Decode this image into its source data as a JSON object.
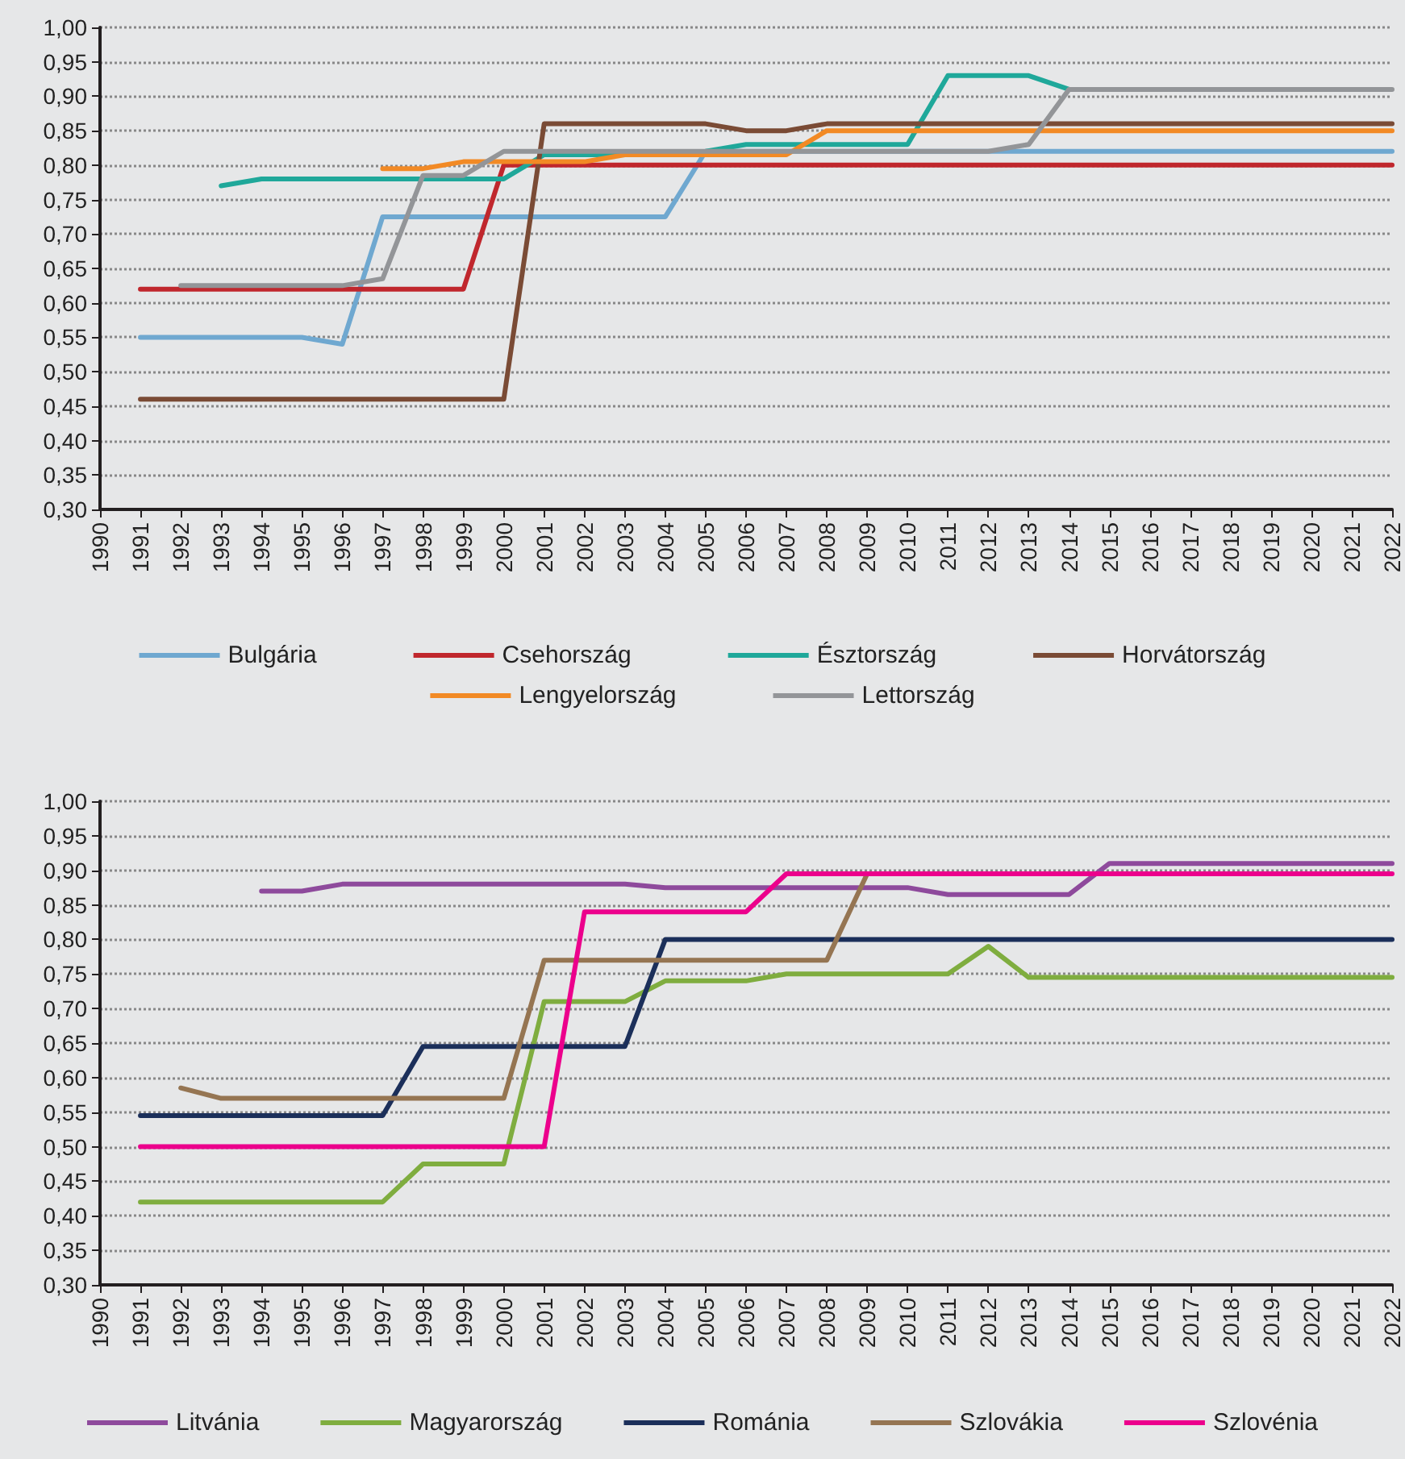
{
  "chart_data": [
    {
      "type": "line",
      "categories": [
        "1990",
        "1991",
        "1992",
        "1993",
        "1994",
        "1995",
        "1996",
        "1997",
        "1998",
        "1999",
        "2000",
        "2001",
        "2002",
        "2003",
        "2004",
        "2005",
        "2006",
        "2007",
        "2008",
        "2009",
        "2010",
        "2011",
        "2012",
        "2013",
        "2014",
        "2015",
        "2016",
        "2017",
        "2018",
        "2019",
        "2020",
        "2021",
        "2022"
      ],
      "series": [
        {
          "name": "Bulgária",
          "color": "#6fa8d0",
          "values": [
            null,
            0.55,
            0.55,
            0.55,
            0.55,
            0.55,
            0.54,
            0.725,
            0.725,
            0.725,
            0.725,
            0.725,
            0.725,
            0.725,
            0.725,
            0.82,
            0.82,
            0.82,
            0.82,
            0.82,
            0.82,
            0.82,
            0.82,
            0.82,
            0.82,
            0.82,
            0.82,
            0.82,
            0.82,
            0.82,
            0.82,
            0.82,
            0.82
          ]
        },
        {
          "name": "Csehország",
          "color": "#c0272d",
          "values": [
            null,
            0.62,
            0.62,
            0.62,
            0.62,
            0.62,
            0.62,
            0.62,
            0.62,
            0.62,
            0.8,
            0.8,
            0.8,
            0.8,
            0.8,
            0.8,
            0.8,
            0.8,
            0.8,
            0.8,
            0.8,
            0.8,
            0.8,
            0.8,
            0.8,
            0.8,
            0.8,
            0.8,
            0.8,
            0.8,
            0.8,
            0.8,
            0.8
          ]
        },
        {
          "name": "Észtország",
          "color": "#1fa89a",
          "values": [
            null,
            null,
            null,
            0.77,
            0.78,
            0.78,
            0.78,
            0.78,
            0.78,
            0.78,
            0.78,
            0.815,
            0.815,
            0.815,
            0.815,
            0.82,
            0.83,
            0.83,
            0.83,
            0.83,
            0.83,
            0.93,
            0.93,
            0.93,
            0.91,
            null,
            null,
            null,
            null,
            null,
            null,
            null,
            null
          ]
        },
        {
          "name": "Horvátország",
          "color": "#7a4b35",
          "values": [
            null,
            0.46,
            0.46,
            0.46,
            0.46,
            0.46,
            0.46,
            0.46,
            0.46,
            0.46,
            0.46,
            0.86,
            0.86,
            0.86,
            0.86,
            0.86,
            0.85,
            0.85,
            0.86,
            0.86,
            0.86,
            0.86,
            0.86,
            0.86,
            0.86,
            0.86,
            0.86,
            0.86,
            0.86,
            0.86,
            0.86,
            0.86,
            0.86
          ]
        },
        {
          "name": "Lengyelország",
          "color": "#f28a25",
          "values": [
            null,
            null,
            null,
            null,
            null,
            null,
            null,
            0.795,
            0.795,
            0.805,
            0.805,
            0.805,
            0.805,
            0.815,
            0.815,
            0.815,
            0.815,
            0.815,
            0.85,
            0.85,
            0.85,
            0.85,
            0.85,
            0.85,
            0.85,
            0.85,
            0.85,
            0.85,
            0.85,
            0.85,
            0.85,
            0.85,
            0.85
          ]
        },
        {
          "name": "Lettország",
          "color": "#939598",
          "values": [
            null,
            null,
            0.625,
            0.625,
            0.625,
            0.625,
            0.625,
            0.635,
            0.785,
            0.785,
            0.82,
            0.82,
            0.82,
            0.82,
            0.82,
            0.82,
            0.82,
            0.82,
            0.82,
            0.82,
            0.82,
            0.82,
            0.82,
            0.83,
            0.91,
            0.91,
            0.91,
            0.91,
            0.91,
            0.91,
            0.91,
            0.91,
            0.91
          ]
        }
      ],
      "ylim": [
        0.3,
        1
      ],
      "yticks": [
        {
          "value": 0.3,
          "label": "0,30"
        },
        {
          "value": 0.35,
          "label": "0,35"
        },
        {
          "value": 0.4,
          "label": "0,40"
        },
        {
          "value": 0.45,
          "label": "0,45"
        },
        {
          "value": 0.5,
          "label": "0,50"
        },
        {
          "value": 0.55,
          "label": "0,55"
        },
        {
          "value": 0.6,
          "label": "0,60"
        },
        {
          "value": 0.65,
          "label": "0,65"
        },
        {
          "value": 0.7,
          "label": "0,70"
        },
        {
          "value": 0.75,
          "label": "0,75"
        },
        {
          "value": 0.8,
          "label": "0,80"
        },
        {
          "value": 0.85,
          "label": "0,85"
        },
        {
          "value": 0.9,
          "label": "0,90"
        },
        {
          "value": 0.95,
          "label": "0,95"
        },
        {
          "value": 1,
          "label": "1,00"
        }
      ],
      "grid": "y",
      "legend": "bottom",
      "marker": "none",
      "line_style": "solid"
    },
    {
      "type": "line",
      "categories": [
        "1990",
        "1991",
        "1992",
        "1993",
        "1994",
        "1995",
        "1996",
        "1997",
        "1998",
        "1999",
        "2000",
        "2001",
        "2002",
        "2003",
        "2004",
        "2005",
        "2006",
        "2007",
        "2008",
        "2009",
        "2010",
        "2011",
        "2012",
        "2013",
        "2014",
        "2015",
        "2016",
        "2017",
        "2018",
        "2019",
        "2020",
        "2021",
        "2022"
      ],
      "series": [
        {
          "name": "Litvánia",
          "color": "#8e4a9c",
          "values": [
            null,
            null,
            null,
            null,
            0.87,
            0.87,
            0.88,
            0.88,
            0.88,
            0.88,
            0.88,
            0.88,
            0.88,
            0.88,
            0.875,
            0.875,
            0.875,
            0.875,
            0.875,
            0.875,
            0.875,
            0.865,
            0.865,
            0.865,
            0.865,
            0.91,
            0.91,
            0.91,
            0.91,
            0.91,
            0.91,
            0.91,
            0.91
          ]
        },
        {
          "name": "Magyarország",
          "color": "#7fad3f",
          "values": [
            null,
            0.42,
            0.42,
            0.42,
            0.42,
            0.42,
            0.42,
            0.42,
            0.475,
            0.475,
            0.475,
            0.71,
            0.71,
            0.71,
            0.74,
            0.74,
            0.74,
            0.75,
            0.75,
            0.75,
            0.75,
            0.75,
            0.79,
            0.745,
            0.745,
            0.745,
            0.745,
            0.745,
            0.745,
            0.745,
            0.745,
            0.745,
            0.745
          ]
        },
        {
          "name": "Románia",
          "color": "#1b2f5a",
          "values": [
            null,
            0.545,
            0.545,
            0.545,
            0.545,
            0.545,
            0.545,
            0.545,
            0.645,
            0.645,
            0.645,
            0.645,
            0.645,
            0.645,
            0.8,
            0.8,
            0.8,
            0.8,
            0.8,
            0.8,
            0.8,
            0.8,
            0.8,
            0.8,
            0.8,
            0.8,
            0.8,
            0.8,
            0.8,
            0.8,
            0.8,
            0.8,
            0.8
          ]
        },
        {
          "name": "Szlovákia",
          "color": "#957552",
          "values": [
            null,
            null,
            0.585,
            0.57,
            0.57,
            0.57,
            0.57,
            0.57,
            0.57,
            0.57,
            0.57,
            0.77,
            0.77,
            0.77,
            0.77,
            0.77,
            0.77,
            0.77,
            0.77,
            0.895,
            null,
            null,
            null,
            null,
            null,
            null,
            null,
            null,
            null,
            null,
            null,
            null,
            null
          ]
        },
        {
          "name": "Szlovénia",
          "color": "#ec008c",
          "values": [
            null,
            0.5,
            0.5,
            0.5,
            0.5,
            0.5,
            0.5,
            0.5,
            0.5,
            0.5,
            0.5,
            0.5,
            0.84,
            0.84,
            0.84,
            0.84,
            0.84,
            0.895,
            0.895,
            0.895,
            0.895,
            0.895,
            0.895,
            0.895,
            0.895,
            0.895,
            0.895,
            0.895,
            0.895,
            0.895,
            0.895,
            0.895,
            0.895
          ]
        }
      ],
      "ylim": [
        0.3,
        1
      ],
      "yticks": [
        {
          "value": 0.3,
          "label": "0,30"
        },
        {
          "value": 0.35,
          "label": "0,35"
        },
        {
          "value": 0.4,
          "label": "0,40"
        },
        {
          "value": 0.45,
          "label": "0,45"
        },
        {
          "value": 0.5,
          "label": "0,50"
        },
        {
          "value": 0.55,
          "label": "0,55"
        },
        {
          "value": 0.6,
          "label": "0,60"
        },
        {
          "value": 0.65,
          "label": "0,65"
        },
        {
          "value": 0.7,
          "label": "0,70"
        },
        {
          "value": 0.75,
          "label": "0,75"
        },
        {
          "value": 0.8,
          "label": "0,80"
        },
        {
          "value": 0.85,
          "label": "0,85"
        },
        {
          "value": 0.9,
          "label": "0,90"
        },
        {
          "value": 0.95,
          "label": "0,95"
        },
        {
          "value": 1,
          "label": "1,00"
        }
      ],
      "grid": "y",
      "legend": "bottom",
      "marker": "none",
      "line_style": "solid"
    }
  ]
}
